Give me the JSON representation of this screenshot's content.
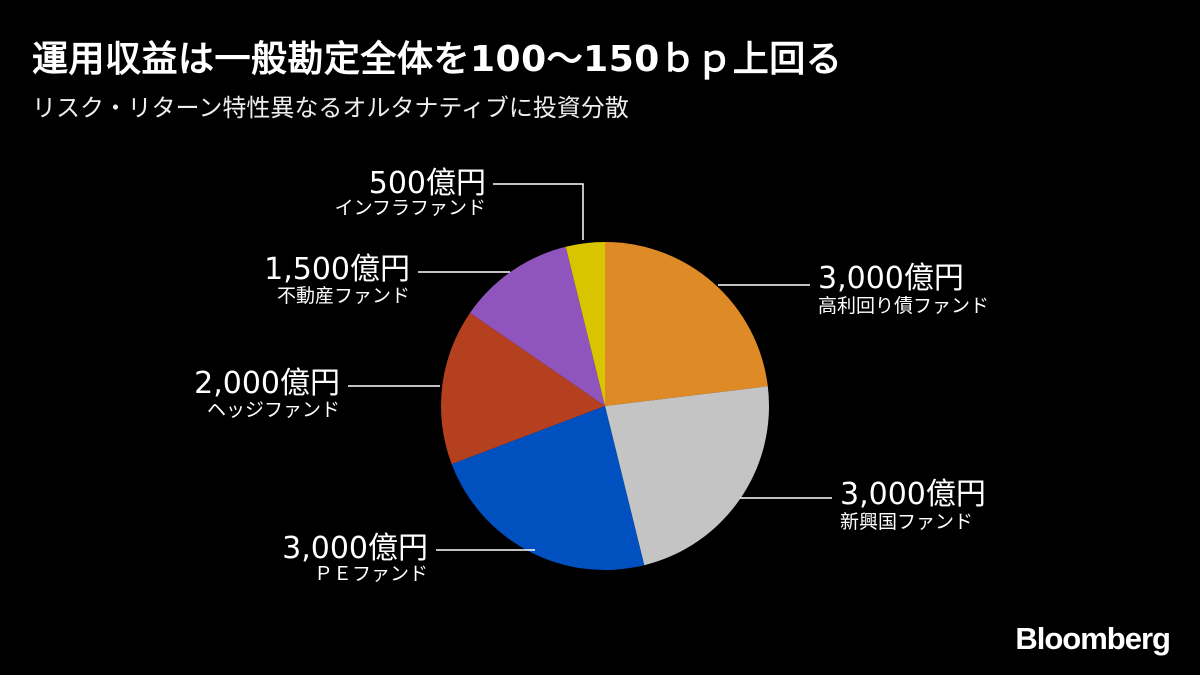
{
  "header": {
    "title": "運用収益は一般勘定全体を100～150ｂｐ上回る",
    "subtitle": "リスク・リターン特性異なるオルタナティブに投資分散"
  },
  "brand": "Bloomberg",
  "chart_data": {
    "type": "pie",
    "unit": "億円",
    "slices": [
      {
        "value": 3000,
        "value_label": "3,000億円",
        "label": "高利回り債ファンド",
        "color": "#DE8A26"
      },
      {
        "value": 3000,
        "value_label": "3,000億円",
        "label": "新興国ファンド",
        "color": "#C4C4C4"
      },
      {
        "value": 3000,
        "value_label": "3,000億円",
        "label": "ＰＥファンド",
        "color": "#0050C0"
      },
      {
        "value": 2000,
        "value_label": "2,000億円",
        "label": "ヘッジファンド",
        "color": "#B5401F"
      },
      {
        "value": 1500,
        "value_label": "1,500億円",
        "label": "不動産ファンド",
        "color": "#9055BD"
      },
      {
        "value": 500,
        "value_label": "500億円",
        "label": "インフラファンド",
        "color": "#D9C400"
      }
    ],
    "start": "12 o'clock",
    "direction": "clockwise"
  }
}
